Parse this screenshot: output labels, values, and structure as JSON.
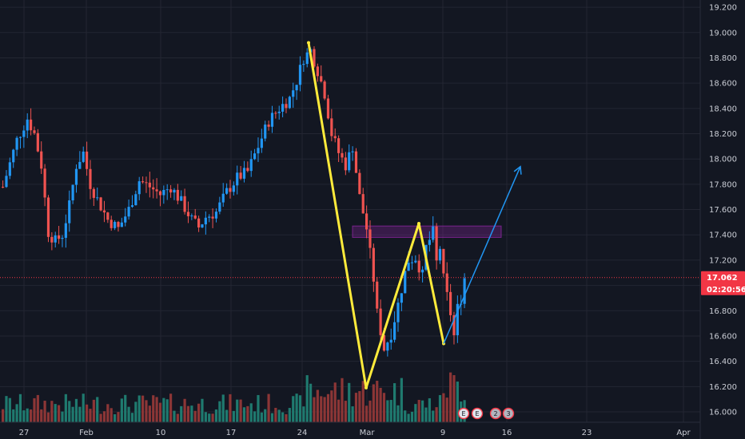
{
  "chart_data": {
    "type": "candlestick",
    "y_axis": {
      "range": [
        15.94,
        19.28
      ],
      "ticks": [
        "19.200",
        "19.000",
        "18.800",
        "18.600",
        "18.400",
        "18.200",
        "18.000",
        "17.800",
        "17.600",
        "17.400",
        "17.200",
        "17.000",
        "16.800",
        "16.600",
        "16.400",
        "16.200",
        "16.000"
      ],
      "tick_values": [
        19.2,
        19.0,
        18.8,
        18.6,
        18.4,
        18.2,
        18.0,
        17.8,
        17.6,
        17.4,
        17.2,
        17.0,
        16.8,
        16.6,
        16.4,
        16.2,
        16.0
      ]
    },
    "x_axis": {
      "ticks": [
        "27",
        "Feb",
        "10",
        "17",
        "24",
        "Mar",
        "9",
        "16",
        "23",
        "Apr"
      ]
    },
    "last_price": {
      "label": "17.062",
      "value": 17.062,
      "color": "#f23645"
    },
    "countdown": {
      "label": "02:20:56"
    },
    "colors": {
      "background": "#131722",
      "grid": "#232632",
      "up": "#2196f3",
      "down": "#ef5350",
      "vol_up": "#1f7a6f",
      "vol_down": "#8c3636",
      "pattern": "#ffeb3b",
      "projection": "#2196f3",
      "zone": "#9c27b0"
    },
    "pattern_points": [
      {
        "time": "Feb 24",
        "price": 18.92
      },
      {
        "time": "Feb 28",
        "price": 16.19
      },
      {
        "time": "Mar 6",
        "price": 17.49
      },
      {
        "time": "Mar 9",
        "price": 16.54
      }
    ],
    "projection": {
      "from": {
        "time": "Mar 9",
        "price": 16.54
      },
      "to": {
        "time": "Mar 14",
        "price": 17.94
      }
    },
    "resistance_zone": {
      "from": "Feb 27",
      "to": "Mar 14",
      "low": 17.38,
      "high": 17.47
    },
    "event_badges": [
      "E",
      "E",
      "2",
      "3"
    ]
  }
}
